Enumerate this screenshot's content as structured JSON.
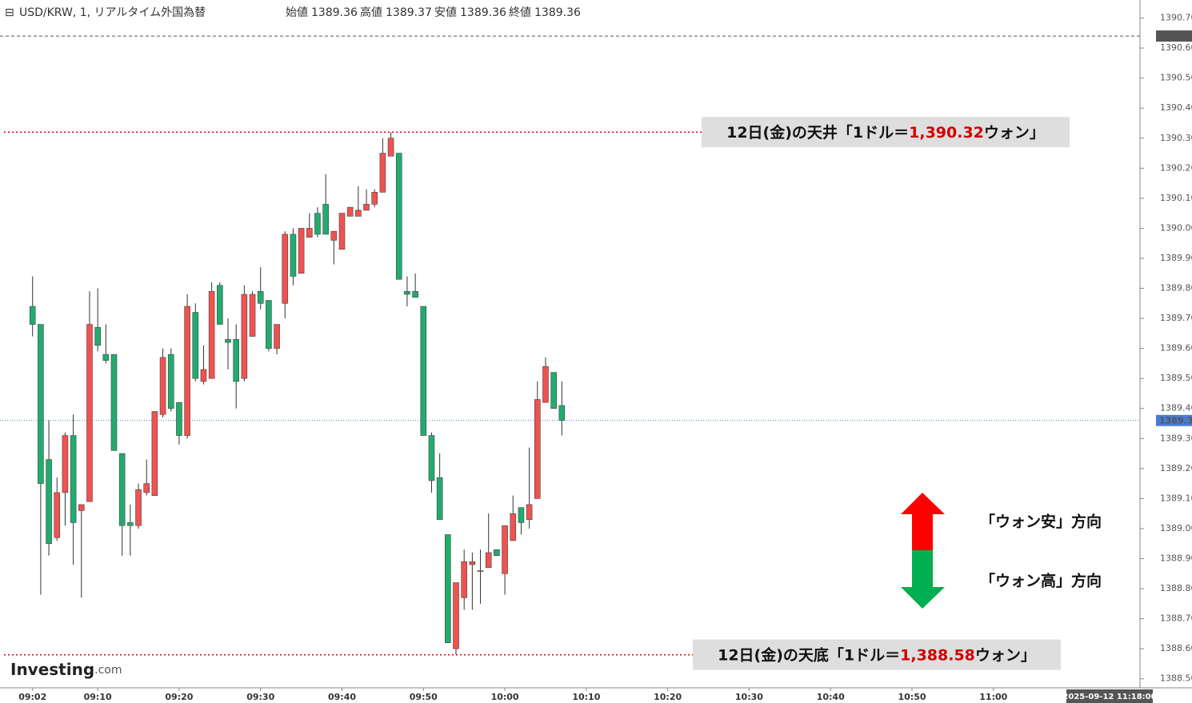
{
  "chart_data": {
    "type": "candlestick",
    "header": {
      "symbol": "USD/KRW, 1, リアルタイム外国為替",
      "fields": [
        {
          "label": "始値",
          "value": 1389.36
        },
        {
          "label": "高値",
          "value": 1389.37
        },
        {
          "label": "安値",
          "value": 1389.36
        },
        {
          "label": "終値",
          "value": 1389.36
        }
      ]
    },
    "x": [
      "09:02",
      "09:03",
      "09:04",
      "09:05",
      "09:06",
      "09:07",
      "09:08",
      "09:09",
      "09:10",
      "09:11",
      "09:12",
      "09:13",
      "09:14",
      "09:15",
      "09:16",
      "09:17",
      "09:18",
      "09:19",
      "09:20",
      "09:21",
      "09:22",
      "09:23",
      "09:24",
      "09:25",
      "09:26",
      "09:27",
      "09:28",
      "09:29",
      "09:30",
      "09:31",
      "09:32",
      "09:33",
      "09:34",
      "09:35",
      "09:36",
      "09:37",
      "09:38",
      "09:39",
      "09:40",
      "09:41",
      "09:42",
      "09:43",
      "09:44",
      "09:45",
      "09:46",
      "09:47",
      "09:48",
      "09:49",
      "09:50",
      "09:51",
      "09:52",
      "09:53",
      "09:54",
      "09:55",
      "09:56",
      "09:57",
      "09:58",
      "09:59",
      "10:00",
      "10:01",
      "10:02",
      "10:03",
      "10:04",
      "10:05",
      "10:06",
      "10:07"
    ],
    "open": [
      1389.74,
      1389.68,
      1389.23,
      1388.97,
      1389.12,
      1389.31,
      1389.06,
      1389.09,
      1389.67,
      1389.58,
      1389.58,
      1389.25,
      1389.02,
      1389.01,
      1389.12,
      1389.11,
      1389.38,
      1389.58,
      1389.42,
      1389.31,
      1389.72,
      1389.49,
      1389.5,
      1389.81,
      1389.63,
      1389.63,
      1389.5,
      1389.64,
      1389.79,
      1389.76,
      1389.6,
      1389.75,
      1389.98,
      1389.85,
      1389.97,
      1390.05,
      1390.08,
      1389.96,
      1389.93,
      1390.04,
      1390.04,
      1390.06,
      1390.08,
      1390.12,
      1390.24,
      1390.25,
      1389.79,
      1389.79,
      1389.74,
      1389.31,
      1389.17,
      1388.98,
      1388.6,
      1388.77,
      1388.88,
      1388.86,
      1388.87,
      1388.93,
      1388.85,
      1388.96,
      1389.07,
      1389.03,
      1389.1,
      1389.42,
      1389.52,
      1389.41
    ],
    "high": [
      1389.84,
      1389.68,
      1389.36,
      1389.17,
      1389.32,
      1389.38,
      1389.08,
      1389.79,
      1389.8,
      1389.68,
      1389.58,
      1389.25,
      1389.08,
      1389.15,
      1389.23,
      1389.39,
      1389.6,
      1389.6,
      1389.42,
      1389.78,
      1389.75,
      1389.61,
      1389.82,
      1389.82,
      1389.7,
      1389.68,
      1389.81,
      1389.79,
      1389.87,
      1389.76,
      1389.68,
      1389.99,
      1390.0,
      1390.0,
      1390.05,
      1390.07,
      1390.18,
      1389.99,
      1390.05,
      1390.07,
      1390.14,
      1390.13,
      1390.13,
      1390.3,
      1390.32,
      1390.25,
      1389.84,
      1389.85,
      1389.74,
      1389.32,
      1389.25,
      1388.98,
      1388.82,
      1388.93,
      1388.92,
      1388.93,
      1389.05,
      1388.93,
      1389.01,
      1389.11,
      1389.07,
      1389.27,
      1389.49,
      1389.57,
      1389.52,
      1389.49
    ],
    "low": [
      1389.64,
      1388.78,
      1388.91,
      1388.96,
      1389.01,
      1388.88,
      1388.77,
      1389.09,
      1389.59,
      1389.55,
      1389.26,
      1388.91,
      1388.91,
      1389.0,
      1389.11,
      1389.11,
      1389.37,
      1389.39,
      1389.28,
      1389.3,
      1389.49,
      1389.48,
      1389.5,
      1389.68,
      1389.53,
      1389.4,
      1389.49,
      1389.64,
      1389.73,
      1389.59,
      1389.58,
      1389.7,
      1389.81,
      1389.85,
      1389.97,
      1389.97,
      1389.98,
      1389.88,
      1389.93,
      1390.04,
      1390.04,
      1390.06,
      1390.07,
      1390.12,
      1390.24,
      1389.83,
      1389.74,
      1389.77,
      1389.31,
      1389.12,
      1389.03,
      1388.62,
      1388.58,
      1388.73,
      1388.73,
      1388.75,
      1388.87,
      1388.91,
      1388.78,
      1388.96,
      1388.98,
      1389.0,
      1389.1,
      1389.42,
      1389.4,
      1389.31
    ],
    "close": [
      1389.68,
      1389.15,
      1388.95,
      1389.12,
      1389.31,
      1389.02,
      1389.08,
      1389.68,
      1389.61,
      1389.56,
      1389.26,
      1389.01,
      1389.01,
      1389.13,
      1389.15,
      1389.39,
      1389.57,
      1389.4,
      1389.31,
      1389.74,
      1389.5,
      1389.53,
      1389.79,
      1389.68,
      1389.62,
      1389.49,
      1389.78,
      1389.78,
      1389.75,
      1389.6,
      1389.68,
      1389.98,
      1389.84,
      1390.0,
      1390.0,
      1389.98,
      1389.98,
      1389.99,
      1390.05,
      1390.07,
      1390.06,
      1390.08,
      1390.12,
      1390.25,
      1390.3,
      1389.83,
      1389.78,
      1389.77,
      1389.31,
      1389.16,
      1389.03,
      1388.62,
      1388.82,
      1388.89,
      1388.89,
      1388.86,
      1388.92,
      1388.91,
      1389.01,
      1389.05,
      1389.02,
      1389.08,
      1389.43,
      1389.54,
      1389.4,
      1389.36
    ],
    "up_color": "#ef5350",
    "down_color": "#22ab6e",
    "ylim": [
      1388.47,
      1390.76
    ],
    "yticks": [
      {
        "value": 1390.7,
        "label": "1390.70"
      },
      {
        "value": 1390.6,
        "label": "1390.60"
      },
      {
        "value": 1390.5,
        "label": "1390.50"
      },
      {
        "value": 1390.4,
        "label": "1390.40"
      },
      {
        "value": 1390.3,
        "label": "1390.30"
      },
      {
        "value": 1390.2,
        "label": "1390.20"
      },
      {
        "value": 1390.1,
        "label": "1390.10"
      },
      {
        "value": 1390.0,
        "label": "1390.00"
      },
      {
        "value": 1389.9,
        "label": "1389.90"
      },
      {
        "value": 1389.8,
        "label": "1389.80"
      },
      {
        "value": 1389.7,
        "label": "1389.70"
      },
      {
        "value": 1389.6,
        "label": "1389.60"
      },
      {
        "value": 1389.5,
        "label": "1389.50"
      },
      {
        "value": 1389.4,
        "label": "1389.40"
      },
      {
        "value": 1389.3,
        "label": "1389.30"
      },
      {
        "value": 1389.2,
        "label": "1389.20"
      },
      {
        "value": 1389.1,
        "label": "1389.10"
      },
      {
        "value": 1389.0,
        "label": "1389.00"
      },
      {
        "value": 1388.9,
        "label": "1388.90"
      },
      {
        "value": 1388.8,
        "label": "1388.80"
      },
      {
        "value": 1388.7,
        "label": "1388.70"
      },
      {
        "value": 1388.6,
        "label": "1388.60"
      },
      {
        "value": 1388.5,
        "label": "1388.50"
      }
    ],
    "xlim": [
      "08:58",
      "11:18"
    ],
    "xticks": [
      "09:02",
      "09:10",
      "09:20",
      "09:30",
      "09:40",
      "09:50",
      "10:00",
      "10:10",
      "10:20",
      "10:30",
      "10:40",
      "10:50",
      "11:00"
    ],
    "price_lines": [
      {
        "value": 1390.64,
        "label": "1390.64",
        "color": "#555555"
      },
      {
        "value": 1389.36,
        "label": "1389.36",
        "color": "#4a7bd4"
      }
    ],
    "cursor_label": "2025-09-12 11:18:00",
    "annotations": [
      {
        "value": 1390.32,
        "before": "12日(金)の天井「1ドル＝",
        "label": "1,390.32",
        "after": "ウォン」"
      },
      {
        "value": 1388.58,
        "before": "12日(金)の天底「1ドル＝",
        "label": "1,388.58",
        "after": "ウォン」"
      }
    ],
    "directions": [
      "「ウォン安」方向",
      "「ウォン高」方向"
    ],
    "logo": {
      "name": "Investing",
      "suffix": ".com"
    }
  }
}
